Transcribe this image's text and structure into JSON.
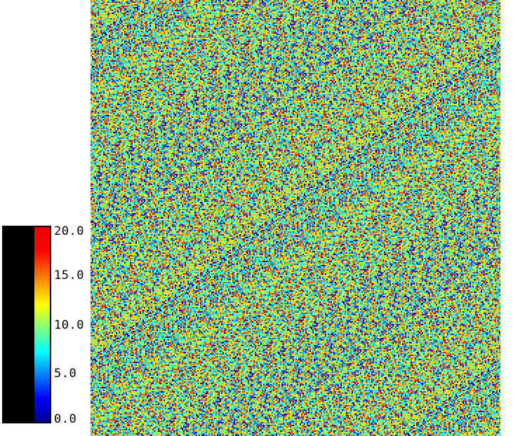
{
  "chart_data": {
    "type": "heatmap",
    "title": "",
    "xlabel": "",
    "ylabel": "",
    "colormap": "jet",
    "colorbar": {
      "range": [
        0.0,
        20.0
      ],
      "ticks": [
        {
          "value": 20.0,
          "label": "20.0"
        },
        {
          "value": 15.0,
          "label": "15.0"
        },
        {
          "value": 10.0,
          "label": "10.0"
        },
        {
          "value": 5.0,
          "label": "5.0"
        },
        {
          "value": 0.0,
          "label": "0.0"
        }
      ]
    },
    "data_description_values": {
      "distribution": "random",
      "min": 0.0,
      "max": 20.0
    },
    "colors": {
      "low": "#0000ff",
      "mid": "#7fff7f",
      "high": "#ff0000"
    }
  }
}
